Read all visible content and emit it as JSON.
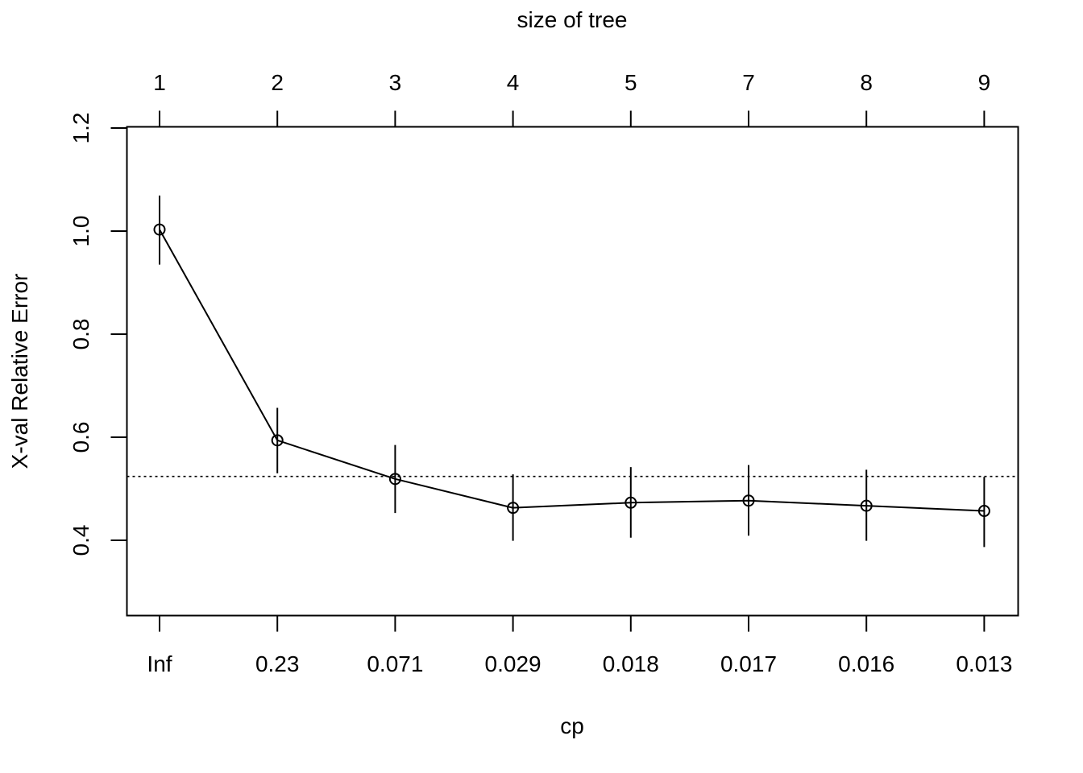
{
  "chart_data": {
    "type": "line",
    "title": "",
    "top_axis_label": "size of tree",
    "xlabel": "cp",
    "ylabel": "X-val Relative Error",
    "x_categories": [
      "Inf",
      "0.23",
      "0.071",
      "0.029",
      "0.018",
      "0.017",
      "0.016",
      "0.013"
    ],
    "top_categories": [
      "1",
      "2",
      "3",
      "4",
      "5",
      "7",
      "8",
      "9"
    ],
    "y_ticks": [
      "0.4",
      "0.6",
      "0.8",
      "1.0",
      "1.2"
    ],
    "ylim": [
      0.25,
      1.2
    ],
    "grid": false,
    "series": [
      {
        "values": [
          1.003,
          0.594,
          0.519,
          0.463,
          0.473,
          0.477,
          0.467,
          0.457
        ],
        "error_low": [
          0.935,
          0.53,
          0.453,
          0.399,
          0.405,
          0.409,
          0.399,
          0.387
        ],
        "error_high": [
          1.069,
          0.657,
          0.585,
          0.528,
          0.542,
          0.546,
          0.537,
          0.523
        ],
        "marker": "open-circle",
        "color": "#000000"
      }
    ],
    "reference_line": {
      "y": 0.524,
      "style": "dotted"
    }
  }
}
